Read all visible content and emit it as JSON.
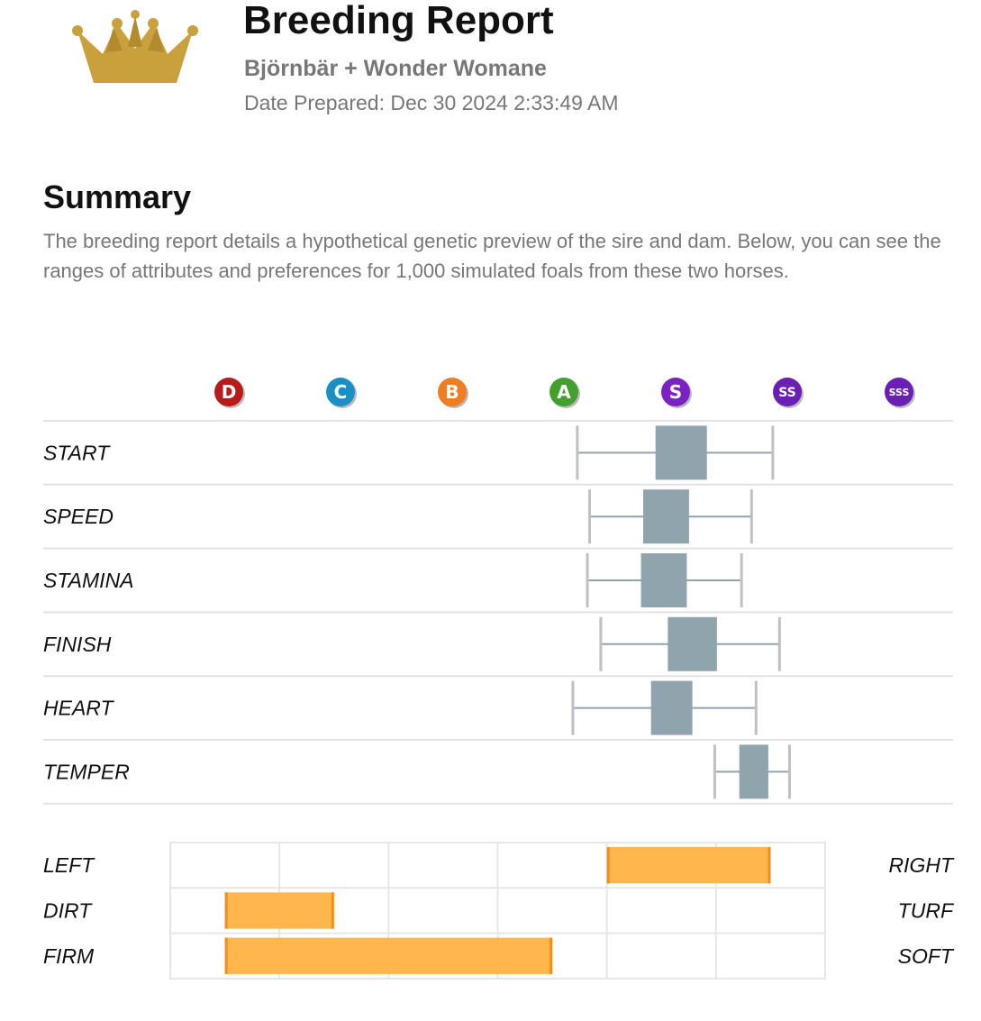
{
  "header": {
    "title": "Breeding Report",
    "subtitle": "Björnbär + Wonder Womane",
    "date_label": "Date Prepared: Dec 30 2024 2:33:49 AM"
  },
  "summary": {
    "heading": "Summary",
    "text": "The breeding report details a hypothetical genetic preview of the sire and dam. Below, you can see the ranges of attributes and preferences for 1,000 simulated foals from these two horses."
  },
  "colors": {
    "crown": "#c9a03c",
    "box": "#90a4ad",
    "whisker": "#90a4ad",
    "cap": "#c0c0c0",
    "row_divider": "#e2e2e2",
    "pref_fill": "#ffb74d",
    "pref_edge": "#f68c1f",
    "pref_grid": "#e6e6e6"
  },
  "chart_data": [
    {
      "type": "box",
      "grades": [
        {
          "label": "D",
          "color": "#b71c1c"
        },
        {
          "label": "C",
          "color": "#1a8fc4"
        },
        {
          "label": "B",
          "color": "#ef7d22"
        },
        {
          "label": "A",
          "color": "#43a02f"
        },
        {
          "label": "S",
          "color": "#7b22c4"
        },
        {
          "label": "SS",
          "color": "#6a1fb5"
        },
        {
          "label": "SSS",
          "color": "#6a1fb5"
        }
      ],
      "x_scale": "grade index 0 = D ... 6 = SSS",
      "rows": [
        {
          "label": "START",
          "min": 3.12,
          "q1": 3.82,
          "q3": 4.28,
          "max": 4.87
        },
        {
          "label": "SPEED",
          "min": 3.23,
          "q1": 3.71,
          "q3": 4.12,
          "max": 4.68
        },
        {
          "label": "STAMINA",
          "min": 3.21,
          "q1": 3.69,
          "q3": 4.1,
          "max": 4.59
        },
        {
          "label": "FINISH",
          "min": 3.33,
          "q1": 3.93,
          "q3": 4.37,
          "max": 4.93
        },
        {
          "label": "HEART",
          "min": 3.08,
          "q1": 3.78,
          "q3": 4.15,
          "max": 4.72
        },
        {
          "label": "TEMPER",
          "min": 4.35,
          "q1": 4.57,
          "q3": 4.83,
          "max": 5.02
        }
      ]
    },
    {
      "type": "range-bar",
      "xlim": [
        0,
        6
      ],
      "rows": [
        {
          "left": "LEFT",
          "right": "RIGHT",
          "start": 4.0,
          "end": 5.5
        },
        {
          "left": "DIRT",
          "right": "TURF",
          "start": 0.5,
          "end": 1.5
        },
        {
          "left": "FIRM",
          "right": "SOFT",
          "start": 0.5,
          "end": 3.5
        }
      ]
    }
  ]
}
